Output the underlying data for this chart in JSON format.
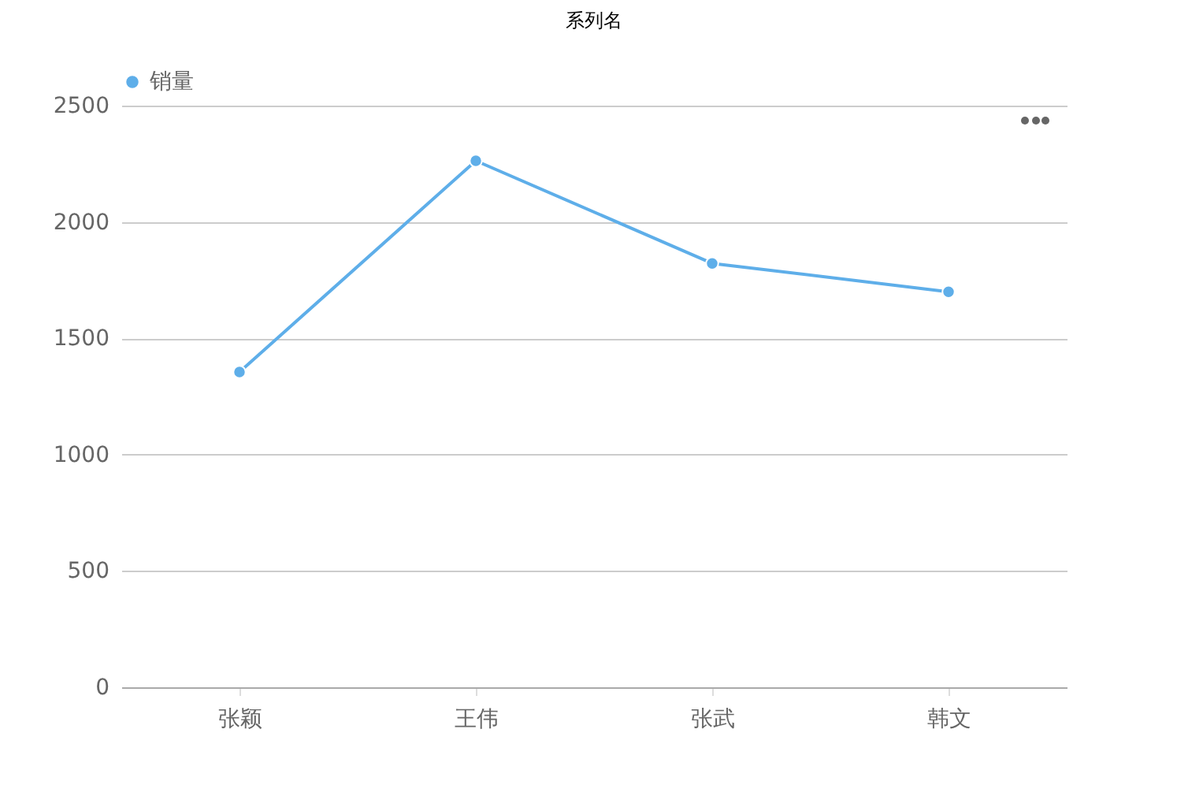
{
  "chart_data": {
    "type": "line",
    "title": "系列名",
    "categories": [
      "张颖",
      "王伟",
      "张武",
      "韩文"
    ],
    "series": [
      {
        "name": "销量",
        "color": "#5eaee9",
        "values": [
          1355,
          2263,
          1822,
          1700
        ]
      }
    ],
    "ylim": [
      0,
      2500
    ],
    "yticks": [
      0,
      500,
      1000,
      1500,
      2000,
      2500
    ],
    "grid": "y",
    "legend": "top left",
    "marker": "circle",
    "line_style": "solid"
  }
}
